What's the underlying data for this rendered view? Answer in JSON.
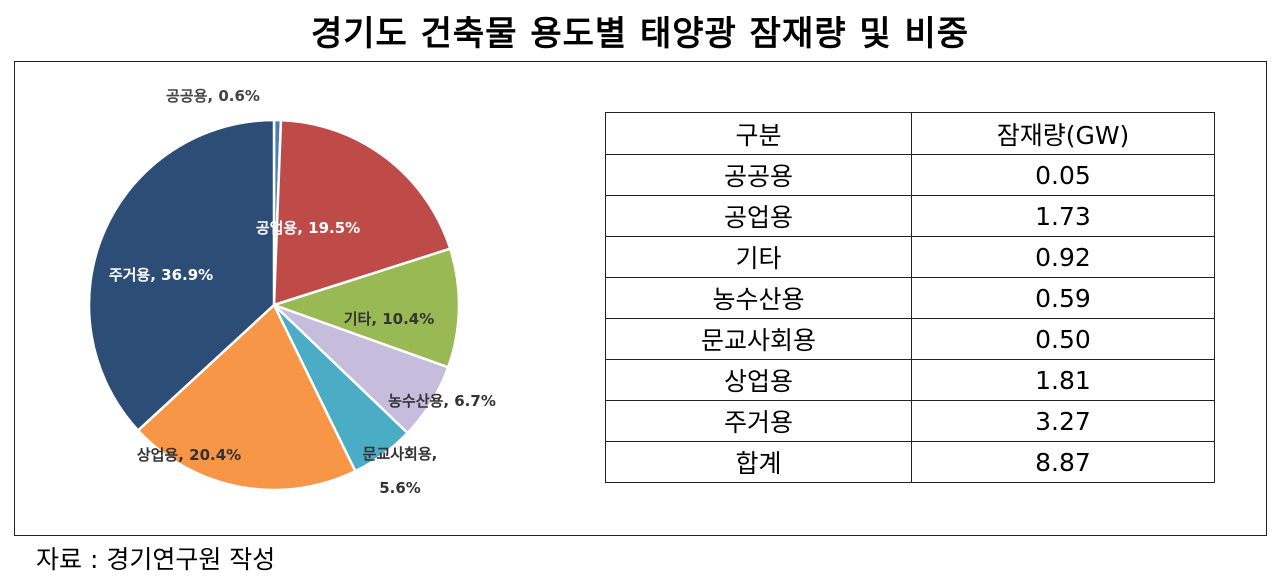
{
  "title": "경기도 건축물 용도별 태양광 잠재량 및 비중",
  "source": "자료 : 경기연구원 작성",
  "table": {
    "headers": [
      "구분",
      "잠재량(GW)"
    ],
    "rows": [
      [
        "공공용",
        "0.05"
      ],
      [
        "공업용",
        "1.73"
      ],
      [
        "기타",
        "0.92"
      ],
      [
        "농수산용",
        "0.59"
      ],
      [
        "문교사회용",
        "0.50"
      ],
      [
        "상업용",
        "1.81"
      ],
      [
        "주거용",
        "3.27"
      ],
      [
        "합계",
        "8.87"
      ]
    ]
  },
  "chart_data": {
    "type": "pie",
    "title": "",
    "slices": [
      {
        "label": "공공용, 0.6%",
        "value": 0.6,
        "color": "#4a7ebb"
      },
      {
        "label": "공업용, 19.5%",
        "value": 19.5,
        "color": "#be4b48"
      },
      {
        "label": "기타, 10.4%",
        "value": 10.4,
        "color": "#98b954"
      },
      {
        "label": "농수산용, 6.7%",
        "value": 6.7,
        "color": "#c6bddc"
      },
      {
        "label": "문교사회용, 5.6%",
        "value": 5.6,
        "color": "#4bacc6"
      },
      {
        "label": "상업용, 20.4%",
        "value": 20.4,
        "color": "#f79646"
      },
      {
        "label": "주거용, 36.9%",
        "value": 36.9,
        "color": "#2c4d75"
      }
    ],
    "label_colors": [
      "#444444",
      "#ffffff",
      "#333333",
      "#333333",
      "#333333",
      "#333333",
      "#ffffff"
    ]
  }
}
